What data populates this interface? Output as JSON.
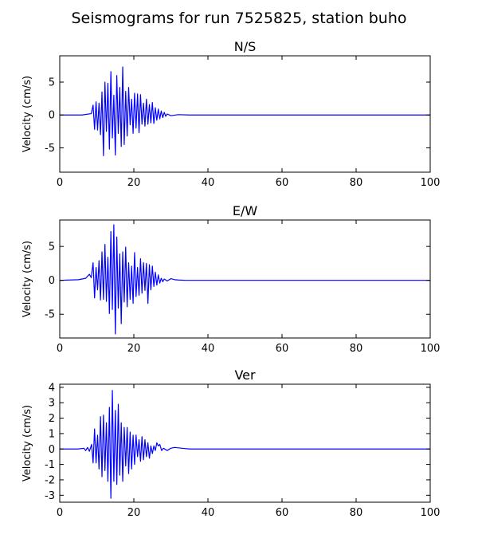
{
  "figure": {
    "title": "Seismograms for run 7525825, station buho"
  },
  "chart_data": [
    {
      "type": "line",
      "title": "N/S",
      "xlabel": "",
      "ylabel": "Velocity (cm/s)",
      "xlim": [
        0,
        100
      ],
      "ylim": [
        -8.7,
        9.0
      ],
      "xticks": [
        0,
        20,
        40,
        60,
        80,
        100
      ],
      "yticks": [
        -5,
        0,
        5
      ],
      "grid": false,
      "color": "#0000ff",
      "series": [
        {
          "x": [
            0,
            6,
            8.5,
            9,
            9.4,
            9.8,
            10.2,
            10.6,
            11,
            11.4,
            11.8,
            12.2,
            12.6,
            13,
            13.4,
            13.8,
            14.2,
            14.6,
            15,
            15.4,
            15.8,
            16.2,
            16.6,
            17,
            17.4,
            17.8,
            18.2,
            18.6,
            19,
            19.4,
            19.8,
            20.2,
            20.6,
            21,
            21.4,
            21.8,
            22.2,
            22.6,
            23,
            23.4,
            23.8,
            24.2,
            24.6,
            25,
            25.4,
            25.8,
            26.2,
            26.6,
            27,
            27.4,
            27.8,
            28.2,
            28.6,
            29,
            30,
            32,
            35,
            100
          ],
          "y": [
            0,
            0,
            0.2,
            1.5,
            -2.2,
            2,
            -2.3,
            1.8,
            -3,
            3.5,
            -6.2,
            5,
            -2.5,
            4.8,
            -5.2,
            6.6,
            -3.5,
            3,
            -6.1,
            6,
            -2.8,
            4.2,
            -4.8,
            7.3,
            -4.5,
            3.6,
            -3.2,
            4.2,
            -1.5,
            2.4,
            -2.8,
            3.3,
            -2,
            3.2,
            -2.7,
            3.1,
            -1.4,
            1.8,
            -1.7,
            2.4,
            -1.4,
            1.6,
            -1.2,
            1.9,
            -1.3,
            1.1,
            -0.8,
            0.9,
            -0.6,
            0.6,
            -0.4,
            0.4,
            -0.2,
            0.15,
            -0.1,
            0.05,
            0,
            0
          ]
        }
      ]
    },
    {
      "type": "line",
      "title": "E/W",
      "xlabel": "",
      "ylabel": "Velocity (cm/s)",
      "xlim": [
        0,
        100
      ],
      "ylim": [
        -8.5,
        8.9
      ],
      "xticks": [
        0,
        20,
        40,
        60,
        80,
        100
      ],
      "yticks": [
        -5,
        0,
        5
      ],
      "grid": false,
      "color": "#0000ff",
      "series": [
        {
          "x": [
            0,
            5,
            7,
            8,
            8.5,
            9,
            9.4,
            9.8,
            10.2,
            10.6,
            11,
            11.4,
            11.8,
            12.2,
            12.6,
            13,
            13.4,
            13.8,
            14.2,
            14.6,
            15,
            15.4,
            15.8,
            16.2,
            16.6,
            17,
            17.4,
            17.8,
            18.2,
            18.6,
            19,
            19.4,
            19.8,
            20.2,
            20.6,
            21,
            21.4,
            21.8,
            22.2,
            22.6,
            23,
            23.4,
            23.8,
            24.2,
            24.6,
            25,
            25.4,
            25.8,
            26.2,
            26.6,
            27,
            27.4,
            27.8,
            28.2,
            29,
            30,
            31,
            32,
            34,
            100
          ],
          "y": [
            0,
            0.1,
            0.3,
            0.9,
            0.4,
            2.6,
            -2.6,
            1.9,
            -1.4,
            2.9,
            -2.9,
            4.2,
            -2.8,
            5.3,
            -3.1,
            3.4,
            -4.9,
            7.2,
            -4.3,
            8.2,
            -7.9,
            6.4,
            -4.1,
            3.9,
            -6.4,
            4.2,
            -3.2,
            4.9,
            -3.9,
            2.6,
            -2.8,
            2.1,
            -3.4,
            4.1,
            -2.4,
            1.9,
            -2.2,
            3.2,
            -1.9,
            2.6,
            -1.5,
            2.5,
            -3.4,
            2.3,
            -1.4,
            2.1,
            -0.9,
            1.2,
            -0.7,
            0.8,
            -0.4,
            0.3,
            -0.2,
            0.2,
            -0.1,
            0.25,
            0.1,
            0.05,
            0,
            0
          ]
        }
      ]
    },
    {
      "type": "line",
      "title": "Ver",
      "xlabel": "",
      "ylabel": "Velocity (cm/s)",
      "xlim": [
        0,
        100
      ],
      "ylim": [
        -3.45,
        4.2
      ],
      "xticks": [
        0,
        20,
        40,
        60,
        80,
        100
      ],
      "yticks": [
        -3,
        -2,
        -1,
        0,
        1,
        2,
        3,
        4
      ],
      "grid": false,
      "color": "#0000ff",
      "series": [
        {
          "x": [
            0,
            5,
            6.5,
            7,
            7.5,
            8,
            8.6,
            9,
            9.4,
            9.8,
            10.2,
            10.6,
            11,
            11.4,
            11.8,
            12.2,
            12.6,
            13,
            13.4,
            13.8,
            14.2,
            14.6,
            15,
            15.4,
            15.8,
            16.2,
            16.6,
            17,
            17.4,
            17.8,
            18.2,
            18.6,
            19,
            19.4,
            19.8,
            20.2,
            20.6,
            21,
            21.4,
            21.8,
            22.2,
            22.6,
            23,
            23.4,
            23.8,
            24.2,
            24.6,
            25,
            25.4,
            25.8,
            26.2,
            26.6,
            27,
            27.5,
            28,
            29,
            30,
            31,
            33,
            35,
            100
          ],
          "y": [
            0,
            0,
            0.05,
            -0.1,
            0.1,
            -0.15,
            0.3,
            -0.9,
            1.3,
            -0.9,
            0.9,
            -1.3,
            2.1,
            -1.8,
            2.2,
            -1.4,
            1.7,
            -2.1,
            2.7,
            -3.2,
            3.8,
            -2.1,
            2.5,
            -2.3,
            2.9,
            -1.7,
            1.7,
            -2.1,
            1.4,
            -1.1,
            1.4,
            -1.6,
            1.1,
            -1.3,
            0.9,
            -1.0,
            0.9,
            -0.5,
            0.6,
            -0.8,
            0.8,
            -0.7,
            0.6,
            -0.5,
            0.4,
            -0.6,
            0.2,
            -0.3,
            0.2,
            -0.1,
            0.4,
            0.2,
            0.3,
            -0.1,
            0.05,
            -0.1,
            0.05,
            0.1,
            0.05,
            0,
            0
          ]
        }
      ]
    }
  ]
}
